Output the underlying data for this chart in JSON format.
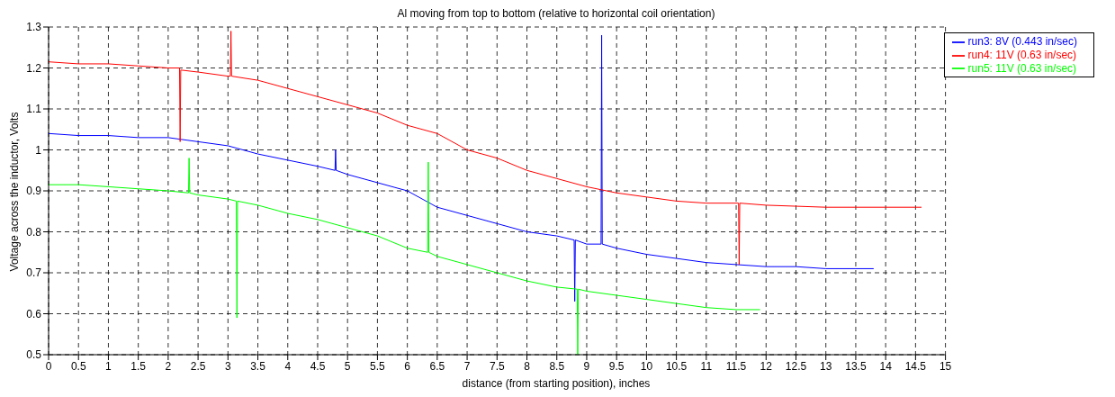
{
  "chart_data": {
    "type": "line",
    "title": "Al moving from top to bottom (relative to horizontal coil orientation)",
    "xlabel": "distance (from starting position), inches",
    "ylabel": "Voltage across the inductor, Volts",
    "xlim": [
      0,
      15
    ],
    "xticks": [
      0,
      0.5,
      1,
      1.5,
      2,
      2.5,
      3,
      3.5,
      4,
      4.5,
      5,
      5.5,
      6,
      6.5,
      7,
      7.5,
      8,
      8.5,
      9,
      9.5,
      10,
      10.5,
      11,
      11.5,
      12,
      12.5,
      13,
      13.5,
      14,
      14.5,
      15
    ],
    "ylim": [
      0.5,
      1.3
    ],
    "yticks": [
      0.5,
      0.6,
      0.7,
      0.8,
      0.9,
      1,
      1.1,
      1.2,
      1.3
    ],
    "grid": true,
    "legend": "top right",
    "line_style": "solid",
    "marker": "none",
    "series": [
      {
        "name": "run3: 8V (0.443 in/sec)",
        "color": "#0000ff",
        "x": [
          0,
          0.5,
          1,
          1.5,
          2,
          2.5,
          3,
          3.5,
          4,
          4.5,
          4.79,
          4.8,
          4.81,
          5,
          5.5,
          6,
          6.5,
          7,
          7.5,
          8,
          8.5,
          8.79,
          8.8,
          8.81,
          9,
          9.24,
          9.25,
          9.26,
          9.5,
          10,
          10.5,
          11,
          11.5,
          12,
          12.5,
          13,
          13.5,
          13.8
        ],
        "values": [
          1.04,
          1.035,
          1.035,
          1.03,
          1.03,
          1.02,
          1.01,
          0.99,
          0.975,
          0.96,
          0.95,
          1.0,
          0.95,
          0.94,
          0.92,
          0.9,
          0.86,
          0.84,
          0.82,
          0.8,
          0.79,
          0.78,
          0.63,
          0.78,
          0.77,
          0.77,
          1.28,
          0.77,
          0.76,
          0.745,
          0.735,
          0.725,
          0.72,
          0.715,
          0.715,
          0.71,
          0.71,
          0.71
        ]
      },
      {
        "name": "run4: 11V (0.63 in/sec)",
        "color": "#ff0000",
        "x": [
          0,
          0.5,
          1,
          1.5,
          2,
          2.19,
          2.2,
          2.21,
          2.5,
          3,
          3.04,
          3.05,
          3.06,
          3.5,
          4,
          4.5,
          5,
          5.5,
          6,
          6.5,
          7,
          7.5,
          8,
          8.5,
          9,
          9.5,
          10,
          10.5,
          11,
          11.54,
          11.55,
          11.56,
          12,
          13,
          14,
          14.6
        ],
        "values": [
          1.215,
          1.21,
          1.21,
          1.205,
          1.2,
          1.2,
          1.02,
          1.195,
          1.19,
          1.18,
          1.18,
          1.29,
          1.18,
          1.17,
          1.15,
          1.13,
          1.11,
          1.09,
          1.06,
          1.04,
          1.0,
          0.98,
          0.95,
          0.93,
          0.91,
          0.895,
          0.885,
          0.875,
          0.87,
          0.87,
          0.72,
          0.87,
          0.865,
          0.86,
          0.86,
          0.86
        ]
      },
      {
        "name": "run5: 11V (0.63 in/sec)",
        "color": "#00ff00",
        "x": [
          0,
          0.5,
          1,
          1.5,
          2,
          2.34,
          2.35,
          2.36,
          2.5,
          3,
          3.14,
          3.15,
          3.16,
          3.5,
          4,
          4.5,
          5,
          5.5,
          6,
          6.34,
          6.35,
          6.36,
          6.5,
          7,
          7.5,
          8,
          8.5,
          8.84,
          8.85,
          8.86,
          9,
          9.5,
          10,
          10.5,
          11,
          11.5,
          11.9
        ],
        "values": [
          0.915,
          0.915,
          0.91,
          0.905,
          0.9,
          0.895,
          0.98,
          0.895,
          0.89,
          0.88,
          0.875,
          0.59,
          0.875,
          0.865,
          0.845,
          0.83,
          0.81,
          0.79,
          0.76,
          0.75,
          0.97,
          0.75,
          0.74,
          0.72,
          0.7,
          0.68,
          0.665,
          0.66,
          0.5,
          0.66,
          0.655,
          0.645,
          0.635,
          0.625,
          0.615,
          0.61,
          0.61
        ]
      }
    ]
  }
}
